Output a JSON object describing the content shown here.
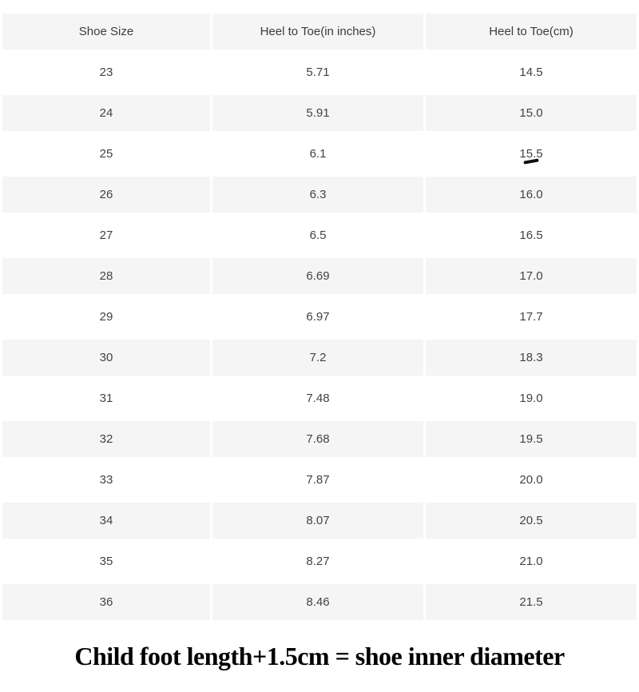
{
  "colors": {
    "page_background": "#ffffff",
    "row_stripe": "#f5f5f6",
    "cell_text": "#424242",
    "caption_text": "#000000",
    "pen_mark": "#0d0d0d"
  },
  "chart_data": {
    "type": "table",
    "columns": [
      "Shoe Size",
      "Heel to Toe(in inches)",
      "Heel to Toe(cm)"
    ],
    "rows": [
      [
        "23",
        "5.71",
        "14.5"
      ],
      [
        "24",
        "5.91",
        "15.0"
      ],
      [
        "25",
        "6.1",
        "15.5"
      ],
      [
        "26",
        "6.3",
        "16.0"
      ],
      [
        "27",
        "6.5",
        "16.5"
      ],
      [
        "28",
        "6.69",
        "17.0"
      ],
      [
        "29",
        "6.97",
        "17.7"
      ],
      [
        "30",
        "7.2",
        "18.3"
      ],
      [
        "31",
        "7.48",
        "19.0"
      ],
      [
        "32",
        "7.68",
        "19.5"
      ],
      [
        "33",
        "7.87",
        "20.0"
      ],
      [
        "34",
        "8.07",
        "20.5"
      ],
      [
        "35",
        "8.27",
        "21.0"
      ],
      [
        "36",
        "8.46",
        "21.5"
      ]
    ],
    "annotation": {
      "marked_value": "15.5",
      "marked_row_shoe_size": "25",
      "mark_description": "small black dash under 15.5"
    }
  },
  "caption": {
    "text": "Child foot length+1.5cm = shoe inner diameter"
  }
}
